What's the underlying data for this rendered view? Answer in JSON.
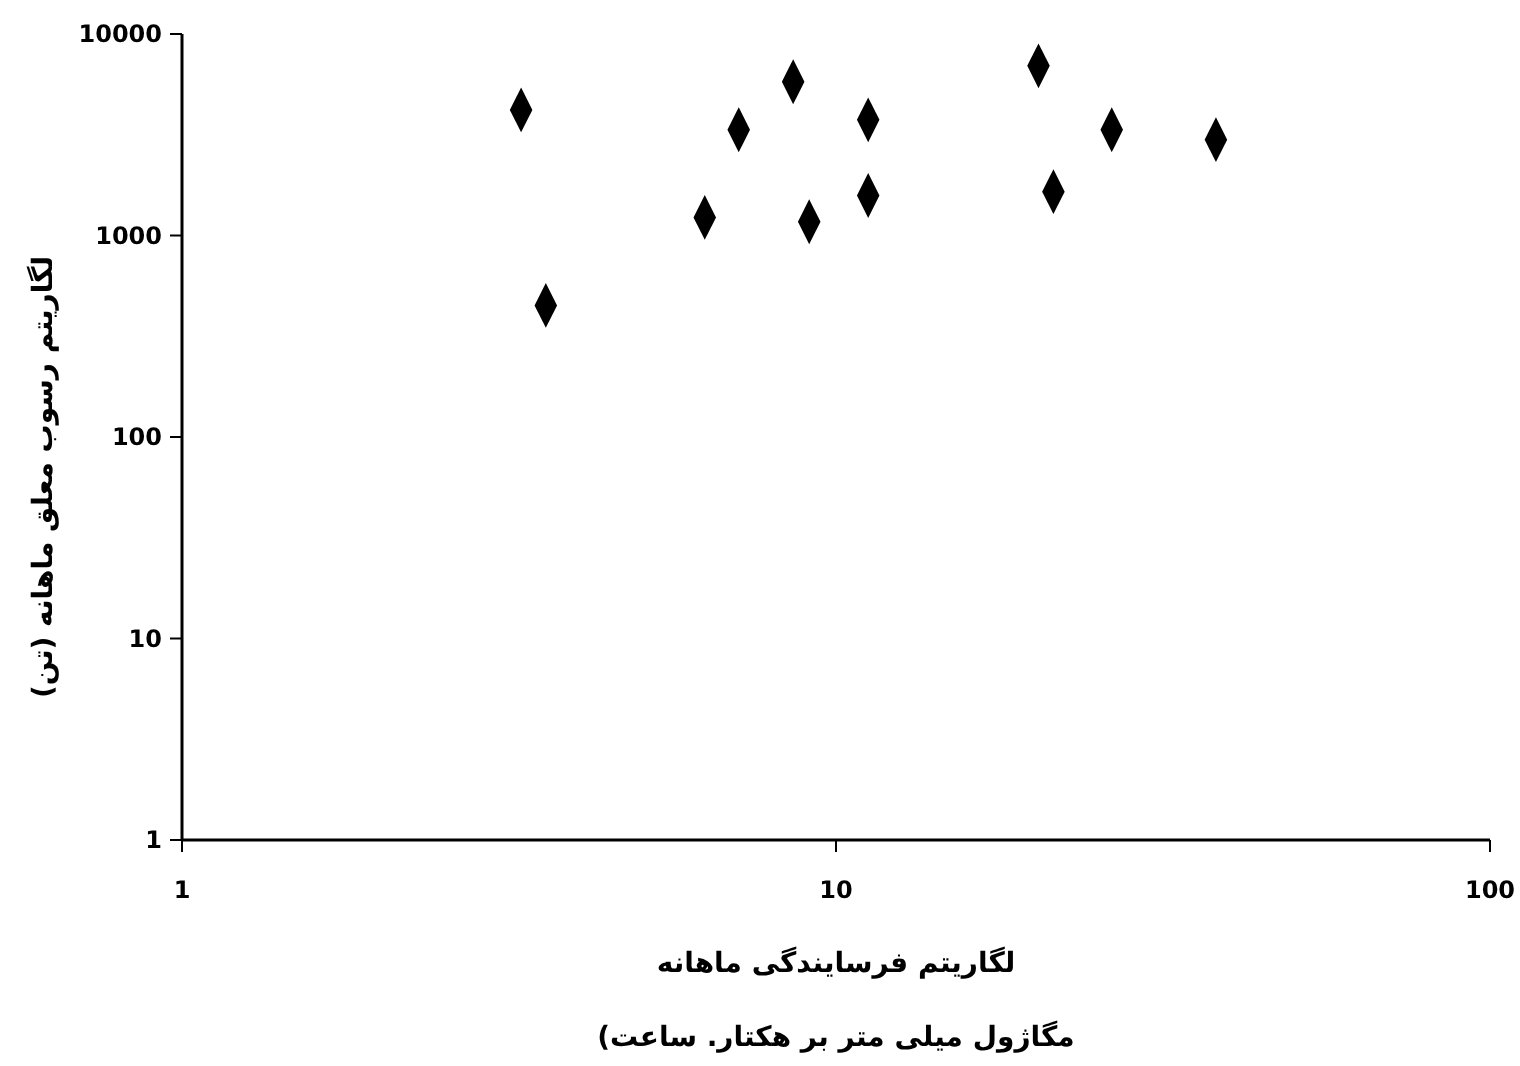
{
  "chart_data": {
    "type": "scatter",
    "xlabel": "لگاریتم فرسایندگی ماهانه\nمگاژول میلی متر بر هکتار. ساعت)",
    "ylabel": "لگاریتم رسوب معلق ماهانه (تن)",
    "log": "xy",
    "xlim": [
      1,
      100
    ],
    "ylim": [
      1,
      10000
    ],
    "xticks": [
      1,
      10,
      100
    ],
    "yticks": [
      1,
      10,
      100,
      1000,
      10000
    ],
    "marker": "diamond",
    "series": [
      {
        "color": "#000000",
        "x": [
          3.3,
          3.6,
          6.3,
          7.1,
          8.6,
          9.1,
          11.2,
          11.2,
          20.4,
          21.5,
          26.4,
          38.1
        ],
        "values": [
          4200,
          450,
          1230,
          3350,
          5790,
          1170,
          3750,
          1580,
          6950,
          1650,
          3350,
          2990
        ]
      }
    ]
  }
}
